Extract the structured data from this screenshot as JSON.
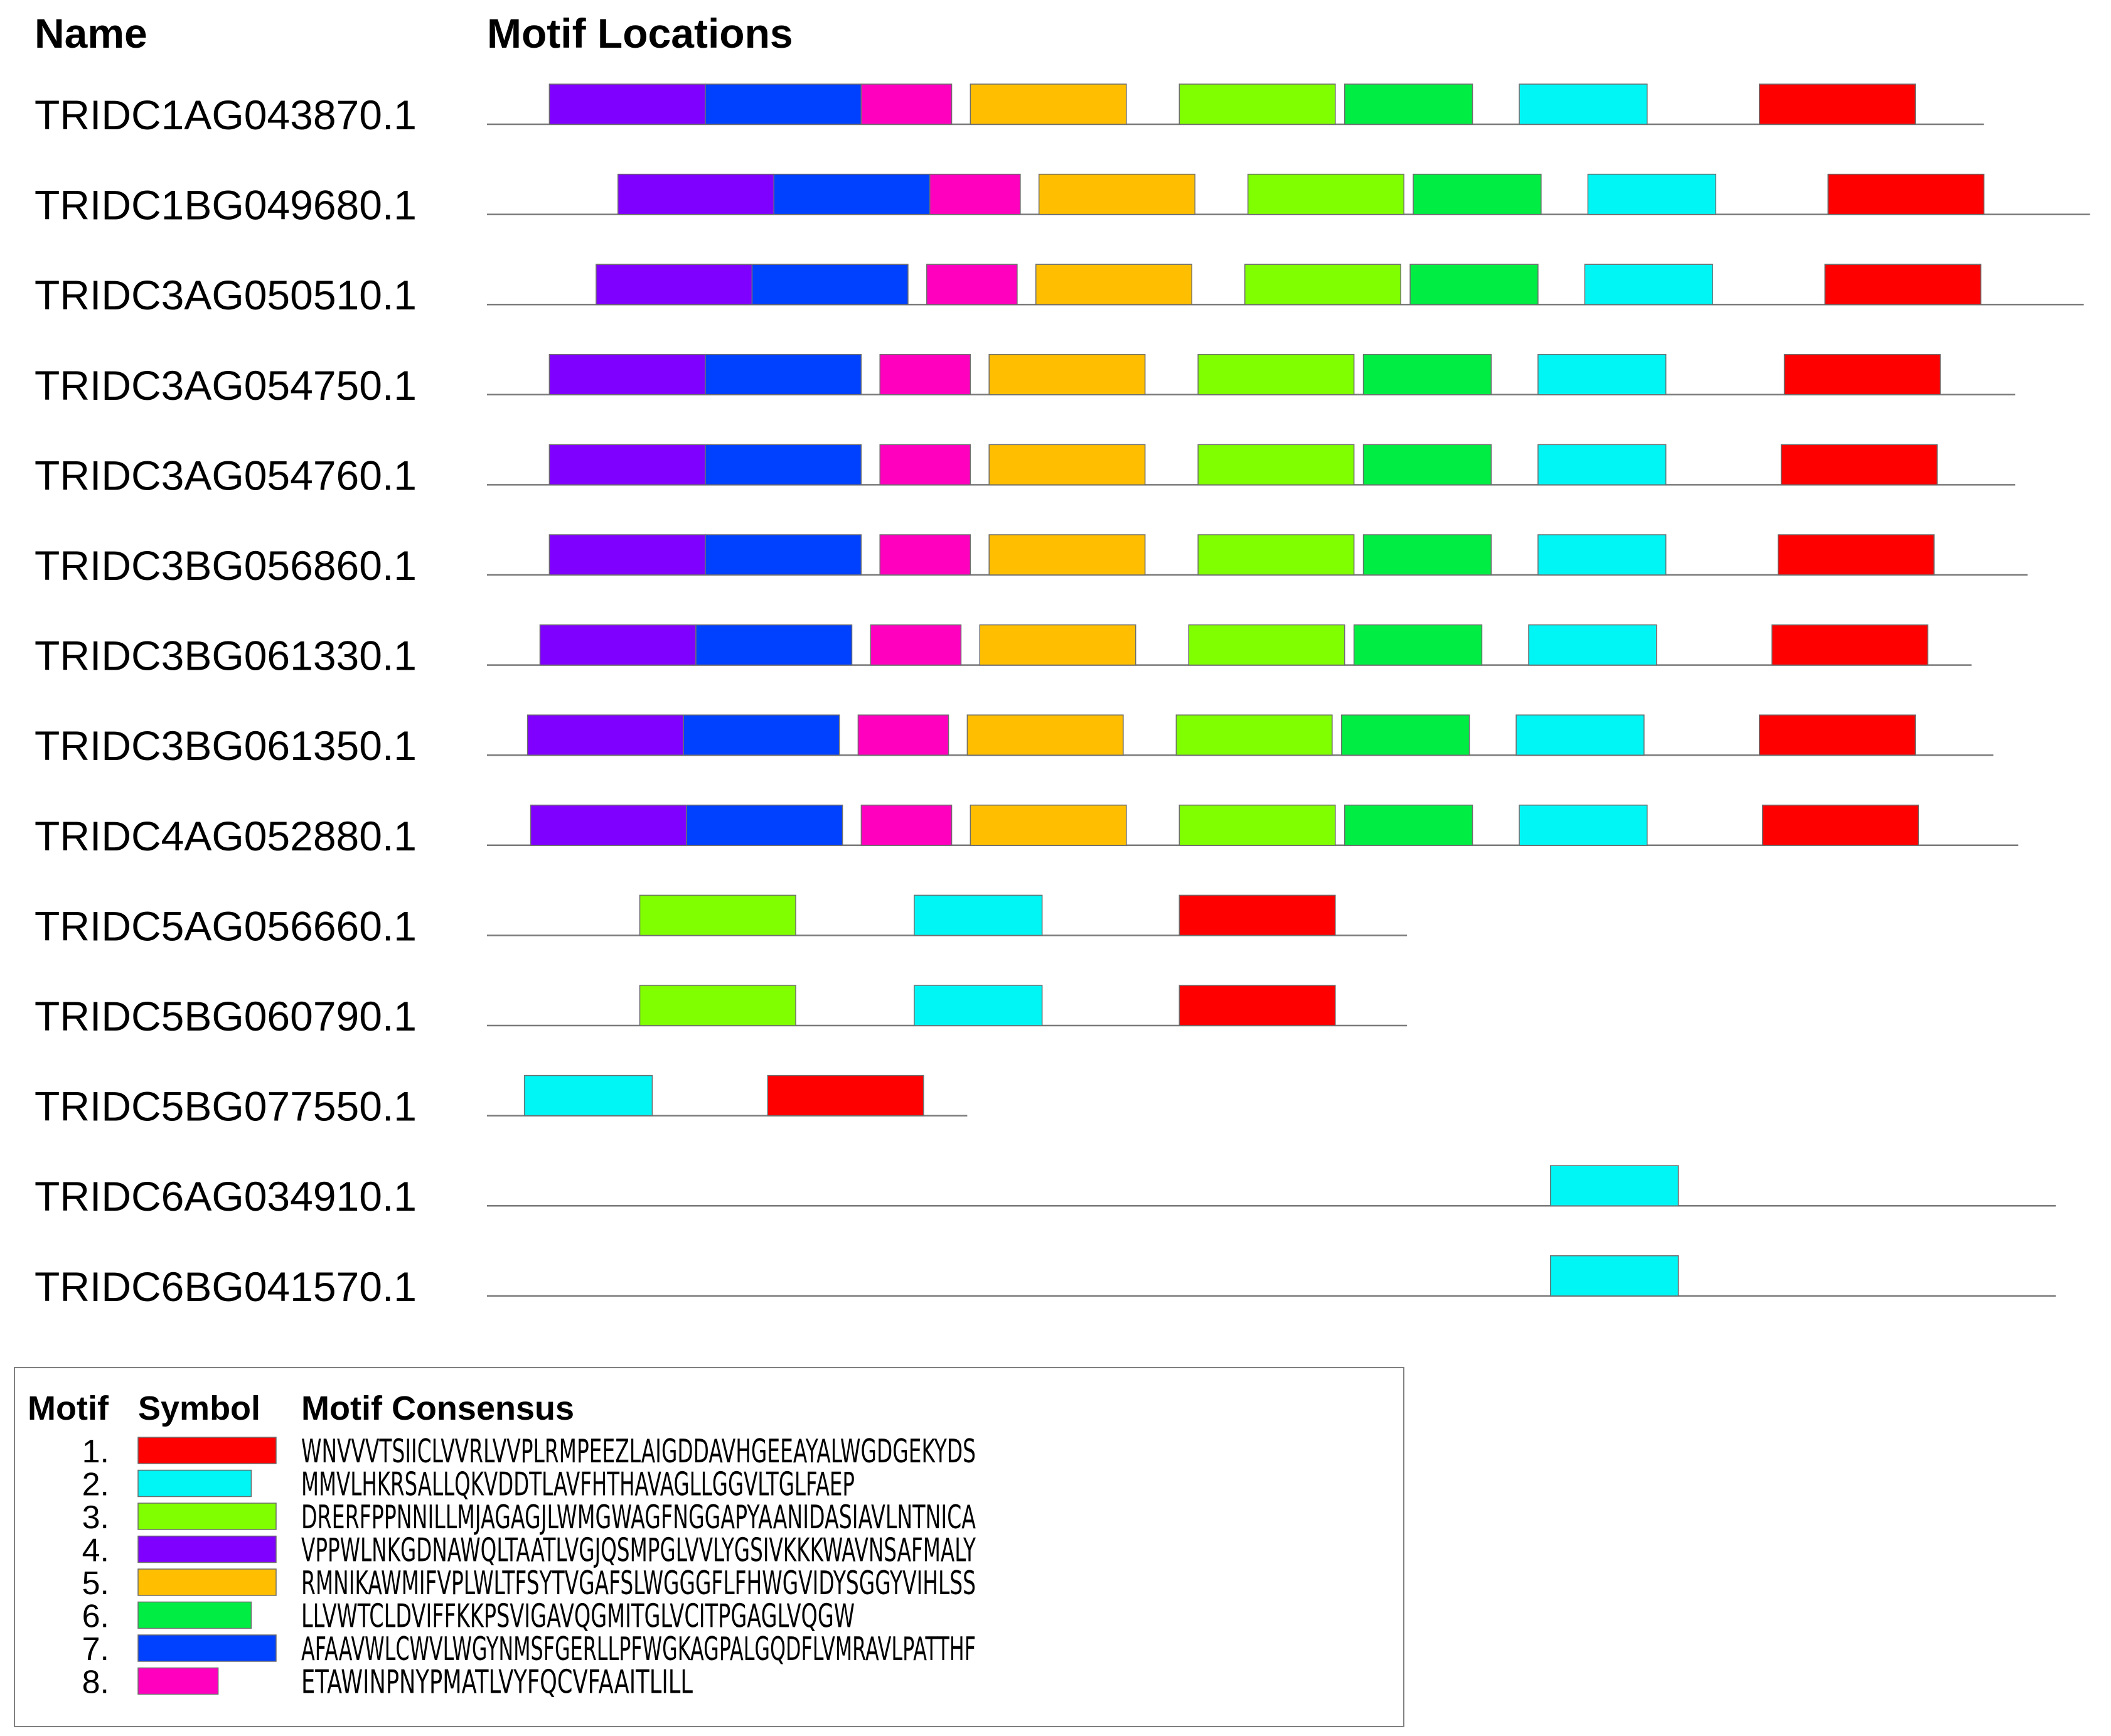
{
  "headers": {
    "name": "Name",
    "locations": "Motif Locations"
  },
  "motifs": [
    {
      "id": 1,
      "number": "1.",
      "color": "#ff0000",
      "consensus": "WNVVVTSIICLVVRLVVPLRMPEEZLAIGDDAVHGEEAYALWGDGEKYDS",
      "length": 50
    },
    {
      "id": 2,
      "number": "2.",
      "color": "#00f5f5",
      "consensus": "MMVLHKRSALLQKVDDTLAVFHTHAVAGLLGGVLTGLFAEP",
      "length": 41
    },
    {
      "id": 3,
      "number": "3.",
      "color": "#80ff00",
      "consensus": "DRERFPPNNILLMJAGAGJLWMGWAGFNGGAPYAANIDASIAVLNTNICA",
      "length": 50
    },
    {
      "id": 4,
      "number": "4.",
      "color": "#8000ff",
      "consensus": "VPPWLNKGDNAWQLTAATLVGJQSMPGLVVLYGSIVKKKWAVNSAFMALY",
      "length": 50
    },
    {
      "id": 5,
      "number": "5.",
      "color": "#ffbf00",
      "consensus": "RMNIKAWMIFVPLWLTFSYTVGAFSLWGGGFLFHWGVIDYSGGYVIHLSS",
      "length": 50
    },
    {
      "id": 6,
      "number": "6.",
      "color": "#00ee44",
      "consensus": "LLVWTCLDVIFFKKPSVIGAVQGMITGLVCITPGAGLVQGW",
      "length": 41
    },
    {
      "id": 7,
      "number": "7.",
      "color": "#0040ff",
      "consensus": "AFAAVWLCWVLWGYNMSFGERLLPFWGKAGPALGQDFLVMRAVLPATTHF",
      "length": 50
    },
    {
      "id": 8,
      "number": "8.",
      "color": "#ff00bf",
      "consensus": "ETAWINPNYPMATLVYFQCVFAAITLILL",
      "length": 29
    }
  ],
  "legend": {
    "col_motif": "Motif",
    "col_symbol": "Symbol",
    "col_consensus": "Motif Consensus"
  },
  "sequences": [
    {
      "name": "TRIDC1AG043870.1",
      "length": 480,
      "sites": [
        {
          "motif": 4,
          "start": 20
        },
        {
          "motif": 7,
          "start": 70
        },
        {
          "motif": 8,
          "start": 120
        },
        {
          "motif": 5,
          "start": 155
        },
        {
          "motif": 3,
          "start": 222
        },
        {
          "motif": 6,
          "start": 275
        },
        {
          "motif": 2,
          "start": 331
        },
        {
          "motif": 1,
          "start": 408
        }
      ]
    },
    {
      "name": "TRIDC1BG049680.1",
      "length": 514,
      "sites": [
        {
          "motif": 4,
          "start": 42
        },
        {
          "motif": 7,
          "start": 92
        },
        {
          "motif": 8,
          "start": 142
        },
        {
          "motif": 5,
          "start": 177
        },
        {
          "motif": 3,
          "start": 244
        },
        {
          "motif": 6,
          "start": 297
        },
        {
          "motif": 2,
          "start": 353
        },
        {
          "motif": 1,
          "start": 430
        }
      ]
    },
    {
      "name": "TRIDC3AG050510.1",
      "length": 512,
      "sites": [
        {
          "motif": 4,
          "start": 35
        },
        {
          "motif": 7,
          "start": 85
        },
        {
          "motif": 8,
          "start": 141
        },
        {
          "motif": 5,
          "start": 176
        },
        {
          "motif": 3,
          "start": 243
        },
        {
          "motif": 6,
          "start": 296
        },
        {
          "motif": 2,
          "start": 352
        },
        {
          "motif": 1,
          "start": 429
        }
      ]
    },
    {
      "name": "TRIDC3AG054750.1",
      "length": 490,
      "sites": [
        {
          "motif": 4,
          "start": 20
        },
        {
          "motif": 7,
          "start": 70
        },
        {
          "motif": 8,
          "start": 126
        },
        {
          "motif": 5,
          "start": 161
        },
        {
          "motif": 3,
          "start": 228
        },
        {
          "motif": 6,
          "start": 281
        },
        {
          "motif": 2,
          "start": 337
        },
        {
          "motif": 1,
          "start": 416
        }
      ]
    },
    {
      "name": "TRIDC3AG054760.1",
      "length": 490,
      "sites": [
        {
          "motif": 4,
          "start": 20
        },
        {
          "motif": 7,
          "start": 70
        },
        {
          "motif": 8,
          "start": 126
        },
        {
          "motif": 5,
          "start": 161
        },
        {
          "motif": 3,
          "start": 228
        },
        {
          "motif": 6,
          "start": 281
        },
        {
          "motif": 2,
          "start": 337
        },
        {
          "motif": 1,
          "start": 415
        }
      ]
    },
    {
      "name": "TRIDC3BG056860.1",
      "length": 494,
      "sites": [
        {
          "motif": 4,
          "start": 20
        },
        {
          "motif": 7,
          "start": 70
        },
        {
          "motif": 8,
          "start": 126
        },
        {
          "motif": 5,
          "start": 161
        },
        {
          "motif": 3,
          "start": 228
        },
        {
          "motif": 6,
          "start": 281
        },
        {
          "motif": 2,
          "start": 337
        },
        {
          "motif": 1,
          "start": 414
        }
      ]
    },
    {
      "name": "TRIDC3BG061330.1",
      "length": 476,
      "sites": [
        {
          "motif": 4,
          "start": 17
        },
        {
          "motif": 7,
          "start": 67
        },
        {
          "motif": 8,
          "start": 123
        },
        {
          "motif": 5,
          "start": 158
        },
        {
          "motif": 3,
          "start": 225
        },
        {
          "motif": 6,
          "start": 278
        },
        {
          "motif": 2,
          "start": 334
        },
        {
          "motif": 1,
          "start": 412
        }
      ]
    },
    {
      "name": "TRIDC3BG061350.1",
      "length": 483,
      "sites": [
        {
          "motif": 4,
          "start": 13
        },
        {
          "motif": 7,
          "start": 63
        },
        {
          "motif": 8,
          "start": 119
        },
        {
          "motif": 5,
          "start": 154
        },
        {
          "motif": 3,
          "start": 221
        },
        {
          "motif": 6,
          "start": 274
        },
        {
          "motif": 2,
          "start": 330
        },
        {
          "motif": 1,
          "start": 408
        }
      ]
    },
    {
      "name": "TRIDC4AG052880.1",
      "length": 491,
      "sites": [
        {
          "motif": 4,
          "start": 14
        },
        {
          "motif": 7,
          "start": 64
        },
        {
          "motif": 8,
          "start": 120
        },
        {
          "motif": 5,
          "start": 155
        },
        {
          "motif": 3,
          "start": 222
        },
        {
          "motif": 6,
          "start": 275
        },
        {
          "motif": 2,
          "start": 331
        },
        {
          "motif": 1,
          "start": 409
        }
      ]
    },
    {
      "name": "TRIDC5AG056660.1",
      "length": 295,
      "sites": [
        {
          "motif": 3,
          "start": 49
        },
        {
          "motif": 2,
          "start": 137
        },
        {
          "motif": 1,
          "start": 222
        }
      ]
    },
    {
      "name": "TRIDC5BG060790.1",
      "length": 295,
      "sites": [
        {
          "motif": 3,
          "start": 49
        },
        {
          "motif": 2,
          "start": 137
        },
        {
          "motif": 1,
          "start": 222
        }
      ]
    },
    {
      "name": "TRIDC5BG077550.1",
      "length": 154,
      "sites": [
        {
          "motif": 2,
          "start": 12
        },
        {
          "motif": 1,
          "start": 90
        }
      ]
    },
    {
      "name": "TRIDC6AG034910.1",
      "length": 503,
      "sites": [
        {
          "motif": 2,
          "start": 341
        }
      ]
    },
    {
      "name": "TRIDC6BG041570.1",
      "length": 503,
      "sites": [
        {
          "motif": 2,
          "start": 341
        }
      ]
    }
  ]
}
